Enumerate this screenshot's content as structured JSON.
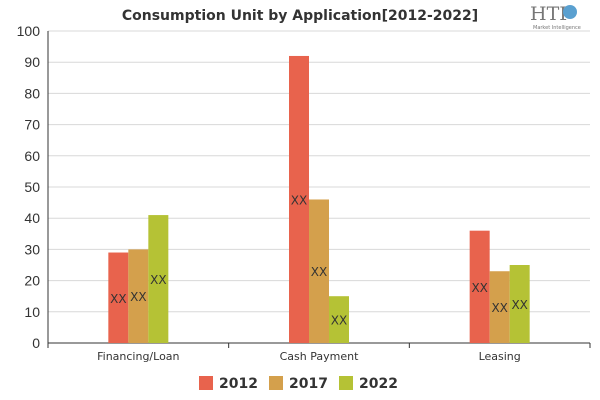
{
  "chart_data": {
    "type": "bar",
    "title": "Consumption Unit by  Application[2012-2022]",
    "categories": [
      "Financing/Loan",
      "Cash Payment",
      "Leasing"
    ],
    "series": [
      {
        "name": "2012",
        "color": "#e8634d",
        "values": [
          29,
          92,
          36
        ],
        "labels": [
          "XX",
          "XX",
          "XX"
        ]
      },
      {
        "name": "2017",
        "color": "#d4a04c",
        "values": [
          30,
          46,
          23
        ],
        "labels": [
          "XX",
          "XX",
          "XX"
        ]
      },
      {
        "name": "2022",
        "color": "#b5c235",
        "values": [
          41,
          15,
          25
        ],
        "labels": [
          "XX",
          "XX",
          "XX"
        ]
      }
    ],
    "ylim": [
      0,
      100
    ],
    "yticks": [
      "0",
      "10",
      "20",
      "30",
      "40",
      "50",
      "60",
      "70",
      "80",
      "90",
      "100"
    ],
    "grid": true,
    "legend_position": "bottom"
  },
  "logo": {
    "text": "HTF",
    "subtext": "Market Intelligence"
  }
}
